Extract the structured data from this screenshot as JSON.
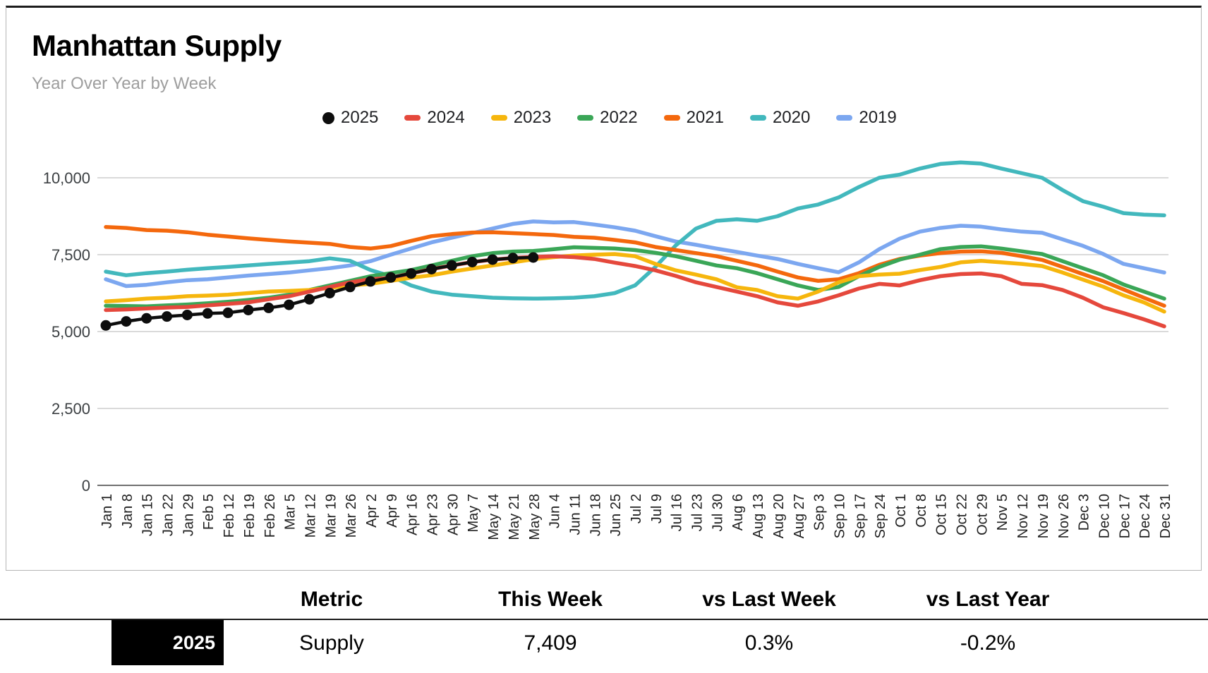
{
  "card": {
    "title": "Manhattan Supply",
    "subtitle": "Year Over Year by Week"
  },
  "colors": {
    "y2025": "#0d0d0d",
    "y2024": "#e5483c",
    "y2023": "#f6b60d",
    "y2022": "#3aa657",
    "y2021": "#f4680d",
    "y2020": "#42b8bd",
    "y2019": "#7ca7f0",
    "grid": "#dadada",
    "zero_axis": "#6f6f6f",
    "axis_text": "#3c4043"
  },
  "legend": [
    {
      "label": "2025",
      "color": "#0d0d0d",
      "marker": "dot"
    },
    {
      "label": "2024",
      "color": "#e5483c",
      "marker": "dash"
    },
    {
      "label": "2023",
      "color": "#f6b60d",
      "marker": "dash"
    },
    {
      "label": "2022",
      "color": "#3aa657",
      "marker": "dash"
    },
    {
      "label": "2021",
      "color": "#f4680d",
      "marker": "dash"
    },
    {
      "label": "2020",
      "color": "#42b8bd",
      "marker": "dash"
    },
    {
      "label": "2019",
      "color": "#7ca7f0",
      "marker": "dash"
    }
  ],
  "chart_data": {
    "type": "line",
    "title": "Manhattan Supply",
    "subtitle": "Year Over Year by Week",
    "xlabel": "",
    "ylabel": "",
    "ylim": [
      0,
      10000
    ],
    "yticks": [
      0,
      2500,
      5000,
      7500,
      10000
    ],
    "grid": true,
    "legend_position": "top",
    "x": [
      "Jan 1",
      "Jan 8",
      "Jan 15",
      "Jan 22",
      "Jan 29",
      "Feb 5",
      "Feb 12",
      "Feb 19",
      "Feb 26",
      "Mar 5",
      "Mar 12",
      "Mar 19",
      "Mar 26",
      "Apr 2",
      "Apr 9",
      "Apr 16",
      "Apr 23",
      "Apr 30",
      "May 7",
      "May 14",
      "May 21",
      "May 28",
      "Jun 4",
      "Jun 11",
      "Jun 18",
      "Jun 25",
      "Jul 2",
      "Jul 9",
      "Jul 16",
      "Jul 23",
      "Jul 30",
      "Aug 6",
      "Aug 13",
      "Aug 20",
      "Aug 27",
      "Sep 3",
      "Sep 10",
      "Sep 17",
      "Sep 24",
      "Oct 1",
      "Oct 8",
      "Oct 15",
      "Oct 22",
      "Oct 29",
      "Nov 5",
      "Nov 12",
      "Nov 19",
      "Nov 26",
      "Dec 3",
      "Dec 10",
      "Dec 17",
      "Dec 24",
      "Dec 31"
    ],
    "series": [
      {
        "name": "2025",
        "color": "#0d0d0d",
        "style": "line_with_dots",
        "values": [
          5200,
          5330,
          5430,
          5490,
          5540,
          5590,
          5610,
          5700,
          5770,
          5870,
          6050,
          6250,
          6450,
          6630,
          6760,
          6890,
          7030,
          7150,
          7260,
          7340,
          7390,
          7409
        ]
      },
      {
        "name": "2024",
        "color": "#e5483c",
        "style": "line",
        "values": [
          5700,
          5720,
          5750,
          5780,
          5800,
          5850,
          5900,
          5950,
          6050,
          6150,
          6300,
          6450,
          6600,
          6700,
          6750,
          6890,
          7030,
          7150,
          7260,
          7340,
          7390,
          7424,
          7450,
          7420,
          7360,
          7240,
          7130,
          6990,
          6810,
          6600,
          6450,
          6300,
          6150,
          5950,
          5840,
          5980,
          6180,
          6400,
          6550,
          6500,
          6670,
          6800,
          6870,
          6890,
          6800,
          6550,
          6510,
          6350,
          6100,
          5790,
          5600,
          5400,
          5170
        ]
      },
      {
        "name": "2023",
        "color": "#f6b60d",
        "style": "line",
        "values": [
          5980,
          6020,
          6070,
          6100,
          6150,
          6170,
          6200,
          6250,
          6300,
          6320,
          6350,
          6420,
          6500,
          6550,
          6650,
          6750,
          6830,
          6950,
          7050,
          7150,
          7250,
          7350,
          7420,
          7470,
          7500,
          7520,
          7450,
          7200,
          6990,
          6850,
          6700,
          6440,
          6350,
          6150,
          6070,
          6300,
          6600,
          6800,
          6850,
          6880,
          7000,
          7100,
          7250,
          7300,
          7250,
          7200,
          7130,
          6920,
          6690,
          6460,
          6180,
          5950,
          5650
        ]
      },
      {
        "name": "2022",
        "color": "#3aa657",
        "style": "line",
        "values": [
          5840,
          5830,
          5820,
          5850,
          5880,
          5920,
          5970,
          6030,
          6100,
          6200,
          6350,
          6500,
          6650,
          6800,
          6900,
          7000,
          7150,
          7300,
          7450,
          7550,
          7600,
          7620,
          7680,
          7740,
          7720,
          7700,
          7650,
          7560,
          7450,
          7300,
          7150,
          7060,
          6900,
          6700,
          6500,
          6350,
          6450,
          6800,
          7100,
          7340,
          7500,
          7680,
          7750,
          7770,
          7700,
          7610,
          7520,
          7290,
          7060,
          6830,
          6530,
          6300,
          6070
        ]
      },
      {
        "name": "2021",
        "color": "#f4680d",
        "style": "line",
        "values": [
          8400,
          8370,
          8300,
          8280,
          8230,
          8150,
          8090,
          8030,
          7980,
          7930,
          7890,
          7850,
          7750,
          7700,
          7780,
          7950,
          8100,
          8170,
          8220,
          8230,
          8200,
          8170,
          8140,
          8080,
          8050,
          7980,
          7900,
          7750,
          7650,
          7550,
          7450,
          7300,
          7150,
          6950,
          6760,
          6650,
          6700,
          6900,
          7170,
          7360,
          7470,
          7550,
          7600,
          7610,
          7560,
          7450,
          7330,
          7100,
          6870,
          6640,
          6370,
          6100,
          5840
        ]
      },
      {
        "name": "2020",
        "color": "#42b8bd",
        "style": "line",
        "values": [
          6950,
          6830,
          6900,
          6950,
          7010,
          7060,
          7100,
          7150,
          7200,
          7240,
          7290,
          7380,
          7300,
          7000,
          6800,
          6500,
          6300,
          6200,
          6150,
          6100,
          6080,
          6070,
          6080,
          6100,
          6150,
          6250,
          6500,
          7100,
          7800,
          8350,
          8600,
          8650,
          8600,
          8750,
          9000,
          9130,
          9360,
          9700,
          10000,
          10100,
          10300,
          10450,
          10500,
          10460,
          10300,
          10150,
          10000,
          9600,
          9240,
          9060,
          8850,
          8800,
          8780
        ]
      },
      {
        "name": "2019",
        "color": "#7ca7f0",
        "style": "line",
        "values": [
          6700,
          6480,
          6520,
          6600,
          6670,
          6700,
          6760,
          6820,
          6870,
          6920,
          6990,
          7060,
          7150,
          7290,
          7500,
          7700,
          7900,
          8050,
          8200,
          8350,
          8500,
          8580,
          8550,
          8560,
          8480,
          8390,
          8280,
          8100,
          7930,
          7820,
          7700,
          7590,
          7470,
          7360,
          7200,
          7060,
          6930,
          7250,
          7680,
          8020,
          8250,
          8370,
          8440,
          8410,
          8320,
          8250,
          8210,
          8000,
          7790,
          7520,
          7200,
          7060,
          6920
        ]
      }
    ]
  },
  "table": {
    "headers": [
      "Metric",
      "This Week",
      "vs Last Week",
      "vs Last Year"
    ],
    "row": {
      "year": "2025",
      "metric": "Supply",
      "this_week": "7,409",
      "vs_last_week": "0.3%",
      "vs_last_year": "-0.2%"
    }
  }
}
